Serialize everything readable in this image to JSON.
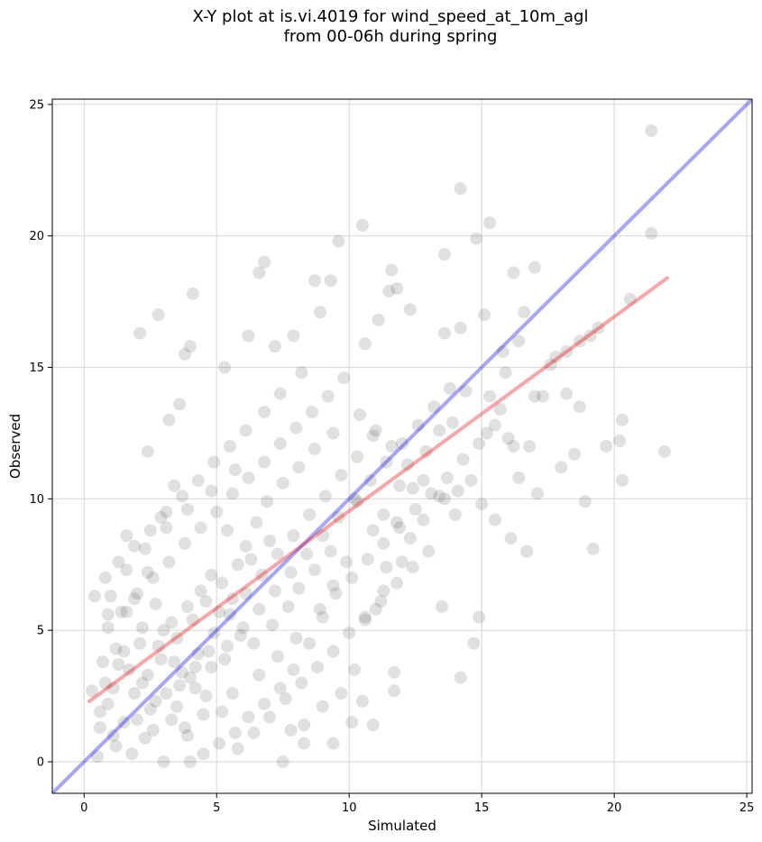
{
  "chart_data": {
    "type": "scatter",
    "title_line1": "X-Y plot at is.vi.4019 for wind_speed_at_10m_agl",
    "title_line2": "from 00-06h during spring",
    "xlabel": "Simulated",
    "ylabel": "Observed",
    "xlim": [
      -1.2,
      25.2
    ],
    "ylim": [
      -1.2,
      25.2
    ],
    "xticks": [
      0,
      5,
      10,
      15,
      20,
      25
    ],
    "yticks": [
      0,
      5,
      10,
      15,
      20,
      25
    ],
    "grid": true,
    "colors": {
      "points": "#404040",
      "identity_line": "#0000ee",
      "fit_line": "#ee0000"
    },
    "series": [
      {
        "values": [
          [
            21.4,
            24.0
          ],
          [
            14.2,
            21.8
          ],
          [
            21.4,
            20.1
          ],
          [
            15.3,
            20.5
          ],
          [
            10.5,
            20.4
          ],
          [
            14.8,
            19.9
          ],
          [
            9.6,
            19.8
          ],
          [
            13.6,
            19.3
          ],
          [
            6.8,
            19.0
          ],
          [
            6.6,
            18.6
          ],
          [
            16.2,
            18.6
          ],
          [
            17.0,
            18.8
          ],
          [
            11.6,
            18.7
          ],
          [
            8.7,
            18.3
          ],
          [
            9.3,
            18.3
          ],
          [
            4.1,
            17.8
          ],
          [
            11.8,
            18.0
          ],
          [
            11.5,
            17.9
          ],
          [
            18.7,
            16.0
          ],
          [
            20.6,
            17.6
          ],
          [
            21.9,
            11.8
          ],
          [
            20.2,
            12.2
          ],
          [
            19.2,
            8.1
          ],
          [
            20.3,
            13.0
          ],
          [
            19.7,
            12.0
          ],
          [
            20.3,
            10.7
          ],
          [
            18.9,
            9.9
          ],
          [
            18.5,
            11.7
          ],
          [
            18.2,
            14.0
          ],
          [
            18.0,
            11.2
          ],
          [
            17.1,
            10.2
          ],
          [
            16.7,
            8.0
          ],
          [
            16.1,
            8.5
          ],
          [
            15.5,
            9.2
          ],
          [
            15.0,
            9.8
          ],
          [
            14.9,
            5.5
          ],
          [
            14.7,
            4.5
          ],
          [
            14.2,
            3.2
          ],
          [
            13.5,
            5.9
          ],
          [
            16.2,
            12.0
          ],
          [
            16.4,
            10.8
          ],
          [
            15.7,
            13.4
          ],
          [
            15.3,
            13.9
          ],
          [
            14.4,
            14.1
          ],
          [
            13.9,
            12.9
          ],
          [
            13.4,
            12.6
          ],
          [
            12.9,
            11.8
          ],
          [
            12.4,
            10.4
          ],
          [
            11.9,
            10.5
          ],
          [
            11.3,
            9.4
          ],
          [
            11.8,
            9.1
          ],
          [
            12.0,
            7.6
          ],
          [
            11.3,
            6.5
          ],
          [
            11.0,
            5.8
          ],
          [
            10.6,
            5.4
          ],
          [
            10.2,
            3.5
          ],
          [
            10.1,
            1.5
          ],
          [
            10.9,
            1.4
          ],
          [
            9.7,
            2.6
          ],
          [
            9.0,
            2.1
          ],
          [
            8.3,
            1.4
          ],
          [
            8.3,
            0.7
          ],
          [
            7.5,
            0.0
          ],
          [
            7.8,
            1.2
          ],
          [
            11.7,
            3.4
          ],
          [
            11.7,
            2.7
          ],
          [
            10.5,
            2.3
          ],
          [
            9.4,
            0.7
          ],
          [
            3.0,
            0.0
          ],
          [
            4.0,
            0.0
          ],
          [
            0.5,
            0.2
          ],
          [
            0.6,
            1.3
          ],
          [
            1.2,
            0.6
          ],
          [
            2.0,
            1.6
          ],
          [
            1.1,
            2.8
          ],
          [
            0.7,
            3.8
          ],
          [
            1.5,
            4.2
          ],
          [
            0.9,
            5.6
          ],
          [
            1.9,
            6.2
          ],
          [
            2.4,
            7.2
          ],
          [
            1.6,
            8.6
          ],
          [
            2.9,
            9.3
          ],
          [
            3.4,
            10.5
          ],
          [
            2.4,
            11.8
          ],
          [
            3.2,
            13.0
          ],
          [
            3.6,
            13.6
          ],
          [
            3.8,
            15.5
          ],
          [
            4.0,
            15.8
          ],
          [
            2.8,
            17.0
          ],
          [
            2.1,
            16.3
          ],
          [
            5.3,
            15.0
          ],
          [
            6.2,
            16.2
          ],
          [
            7.2,
            15.8
          ],
          [
            7.9,
            16.2
          ],
          [
            8.9,
            17.1
          ],
          [
            10.6,
            15.9
          ],
          [
            11.1,
            16.8
          ],
          [
            12.3,
            17.2
          ],
          [
            13.6,
            16.3
          ],
          [
            14.2,
            16.5
          ],
          [
            15.1,
            17.0
          ],
          [
            16.6,
            17.1
          ],
          [
            17.6,
            15.1
          ],
          [
            18.2,
            15.6
          ],
          [
            19.4,
            16.5
          ],
          [
            17.0,
            13.9
          ],
          [
            16.0,
            12.3
          ],
          [
            15.2,
            12.5
          ],
          [
            14.6,
            10.7
          ],
          [
            14.1,
            10.3
          ],
          [
            13.6,
            10.0
          ],
          [
            12.8,
            9.2
          ],
          [
            12.3,
            8.5
          ],
          [
            11.4,
            7.4
          ],
          [
            10.9,
            8.8
          ],
          [
            10.3,
            9.9
          ],
          [
            9.9,
            7.6
          ],
          [
            9.4,
            6.7
          ],
          [
            9.0,
            5.5
          ],
          [
            8.5,
            4.5
          ],
          [
            7.9,
            3.5
          ],
          [
            7.4,
            2.8
          ],
          [
            6.8,
            2.2
          ],
          [
            6.2,
            1.7
          ],
          [
            5.7,
            1.1
          ],
          [
            5.1,
            0.7
          ],
          [
            4.5,
            0.3
          ],
          [
            3.9,
            1.0
          ],
          [
            3.3,
            1.6
          ],
          [
            2.7,
            2.3
          ],
          [
            2.2,
            3.0
          ],
          [
            1.7,
            3.5
          ],
          [
            1.2,
            4.3
          ],
          [
            0.9,
            2.2
          ],
          [
            1.5,
            1.5
          ],
          [
            2.3,
            0.9
          ],
          [
            3.5,
            2.1
          ],
          [
            4.2,
            2.8
          ],
          [
            4.8,
            3.6
          ],
          [
            5.4,
            4.4
          ],
          [
            6.0,
            5.1
          ],
          [
            6.6,
            5.8
          ],
          [
            7.2,
            6.5
          ],
          [
            7.8,
            7.2
          ],
          [
            8.4,
            7.9
          ],
          [
            9.0,
            8.6
          ],
          [
            9.6,
            9.3
          ],
          [
            10.2,
            10.0
          ],
          [
            10.8,
            10.7
          ],
          [
            11.4,
            11.4
          ],
          [
            12.0,
            12.1
          ],
          [
            12.6,
            12.8
          ],
          [
            13.2,
            13.5
          ],
          [
            13.8,
            14.2
          ],
          [
            8.2,
            14.8
          ],
          [
            7.4,
            14.0
          ],
          [
            6.8,
            13.3
          ],
          [
            6.1,
            12.6
          ],
          [
            5.5,
            12.0
          ],
          [
            4.9,
            11.4
          ],
          [
            4.3,
            10.7
          ],
          [
            3.7,
            10.1
          ],
          [
            3.1,
            9.5
          ],
          [
            2.5,
            8.8
          ],
          [
            1.9,
            8.2
          ],
          [
            1.3,
            7.6
          ],
          [
            0.8,
            7.0
          ],
          [
            0.4,
            6.3
          ],
          [
            0.9,
            5.1
          ],
          [
            1.4,
            5.7
          ],
          [
            2.0,
            6.4
          ],
          [
            2.6,
            7.0
          ],
          [
            3.2,
            7.6
          ],
          [
            3.8,
            8.3
          ],
          [
            4.4,
            8.9
          ],
          [
            5.0,
            9.5
          ],
          [
            5.6,
            10.2
          ],
          [
            6.2,
            10.8
          ],
          [
            6.8,
            11.4
          ],
          [
            7.4,
            12.1
          ],
          [
            8.0,
            12.7
          ],
          [
            8.6,
            13.3
          ],
          [
            9.2,
            13.9
          ],
          [
            9.8,
            14.6
          ],
          [
            10.4,
            13.2
          ],
          [
            11.0,
            12.6
          ],
          [
            11.6,
            12.0
          ],
          [
            12.2,
            11.3
          ],
          [
            12.8,
            10.7
          ],
          [
            13.4,
            10.1
          ],
          [
            14.0,
            9.4
          ],
          [
            13.0,
            8.0
          ],
          [
            12.4,
            7.4
          ],
          [
            11.8,
            6.8
          ],
          [
            11.2,
            6.1
          ],
          [
            10.6,
            5.5
          ],
          [
            10.0,
            4.9
          ],
          [
            9.4,
            4.2
          ],
          [
            8.8,
            3.6
          ],
          [
            8.2,
            3.0
          ],
          [
            7.6,
            2.4
          ],
          [
            7.0,
            1.7
          ],
          [
            6.4,
            1.1
          ],
          [
            5.8,
            0.5
          ],
          [
            5.2,
            1.9
          ],
          [
            4.6,
            2.5
          ],
          [
            4.0,
            3.2
          ],
          [
            3.4,
            3.8
          ],
          [
            2.8,
            4.4
          ],
          [
            2.2,
            5.1
          ],
          [
            1.6,
            5.7
          ],
          [
            1.0,
            6.3
          ],
          [
            0.3,
            2.7
          ],
          [
            0.6,
            1.9
          ],
          [
            1.8,
            0.3
          ],
          [
            2.6,
            1.2
          ],
          [
            3.1,
            2.6
          ],
          [
            3.7,
            3.4
          ],
          [
            4.3,
            4.1
          ],
          [
            4.9,
            4.9
          ],
          [
            5.5,
            5.6
          ],
          [
            6.1,
            6.4
          ],
          [
            6.7,
            7.1
          ],
          [
            7.3,
            7.9
          ],
          [
            7.9,
            8.6
          ],
          [
            8.5,
            9.4
          ],
          [
            9.1,
            10.1
          ],
          [
            9.7,
            10.9
          ],
          [
            10.3,
            11.6
          ],
          [
            10.9,
            12.4
          ],
          [
            5.2,
            6.8
          ],
          [
            4.6,
            6.1
          ],
          [
            5.8,
            7.5
          ],
          [
            4.1,
            5.4
          ],
          [
            3.5,
            4.7
          ],
          [
            5.6,
            6.2
          ],
          [
            4.8,
            7.1
          ],
          [
            5.1,
            5.7
          ],
          [
            4.4,
            6.5
          ],
          [
            3.9,
            5.9
          ],
          [
            6.1,
            8.2
          ],
          [
            5.4,
            8.8
          ],
          [
            6.5,
            9.1
          ],
          [
            7.0,
            8.4
          ],
          [
            6.3,
            7.7
          ],
          [
            4.7,
            4.2
          ],
          [
            5.9,
            4.8
          ],
          [
            3.3,
            5.3
          ],
          [
            2.9,
            3.9
          ],
          [
            2.4,
            3.3
          ],
          [
            1.9,
            2.6
          ],
          [
            3.6,
            2.9
          ],
          [
            4.2,
            3.6
          ],
          [
            5.3,
            3.9
          ],
          [
            6.4,
            4.5
          ],
          [
            7.1,
            5.2
          ],
          [
            7.7,
            5.9
          ],
          [
            8.1,
            6.6
          ],
          [
            8.7,
            7.3
          ],
          [
            9.3,
            8.0
          ],
          [
            6.9,
            9.9
          ],
          [
            7.5,
            10.6
          ],
          [
            8.1,
            11.2
          ],
          [
            8.7,
            11.9
          ],
          [
            9.4,
            12.5
          ],
          [
            5.7,
            11.1
          ],
          [
            4.8,
            10.3
          ],
          [
            3.9,
            9.6
          ],
          [
            3.1,
            8.9
          ],
          [
            2.3,
            8.1
          ],
          [
            1.6,
            7.3
          ],
          [
            2.7,
            6.0
          ],
          [
            3.0,
            5.0
          ],
          [
            2.1,
            4.5
          ],
          [
            1.3,
            3.7
          ],
          [
            0.8,
            3.0
          ],
          [
            1.1,
            1.0
          ],
          [
            2.5,
            2.0
          ],
          [
            3.8,
            1.3
          ],
          [
            4.5,
            1.8
          ],
          [
            5.6,
            2.6
          ],
          [
            6.6,
            3.3
          ],
          [
            7.3,
            4.0
          ],
          [
            8.0,
            4.7
          ],
          [
            8.9,
            5.8
          ],
          [
            9.5,
            6.4
          ],
          [
            10.1,
            7.0
          ],
          [
            10.7,
            7.7
          ],
          [
            11.3,
            8.3
          ],
          [
            11.9,
            8.9
          ],
          [
            12.5,
            9.6
          ],
          [
            13.1,
            10.2
          ],
          [
            13.7,
            10.8
          ],
          [
            14.3,
            11.5
          ],
          [
            14.9,
            12.1
          ],
          [
            15.5,
            12.8
          ],
          [
            15.9,
            14.8
          ],
          [
            16.8,
            12.0
          ],
          [
            17.3,
            13.9
          ],
          [
            18.7,
            13.5
          ],
          [
            19.1,
            16.2
          ],
          [
            17.8,
            15.4
          ],
          [
            16.4,
            16.0
          ],
          [
            15.8,
            15.6
          ]
        ]
      }
    ],
    "reference_lines": [
      {
        "kind": "identity",
        "points": [
          [
            -1.2,
            -1.2
          ],
          [
            25.2,
            25.2
          ]
        ]
      },
      {
        "kind": "linear_fit",
        "points": [
          [
            0.2,
            2.3
          ],
          [
            22.0,
            18.4
          ]
        ]
      }
    ]
  }
}
